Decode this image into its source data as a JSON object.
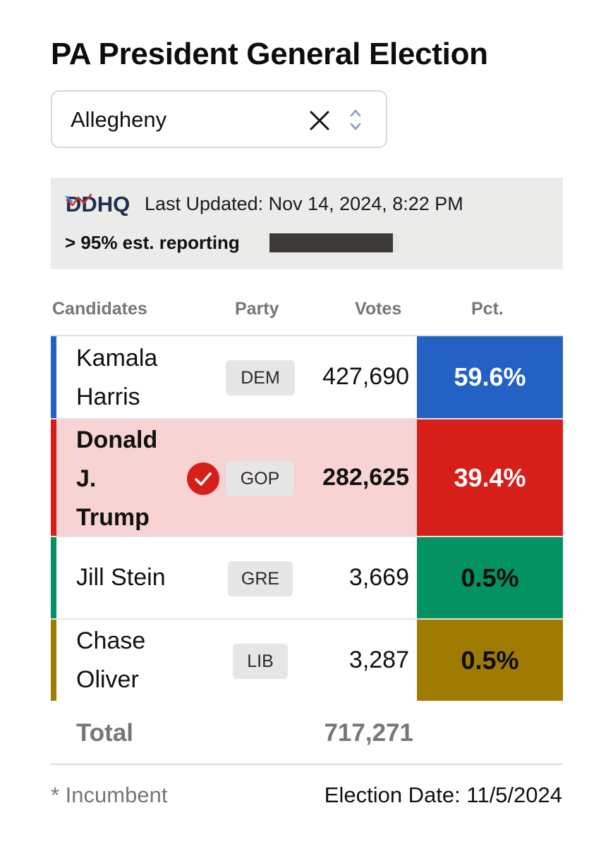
{
  "title": "PA President General Election",
  "county_select": {
    "value": "Allegheny"
  },
  "source": {
    "logo_text": "DDHQ",
    "last_updated": "Last Updated: Nov 14, 2024, 8:22 PM",
    "reporting": "> 95% est. reporting",
    "reporting_fraction": 0.95
  },
  "columns": {
    "candidates": "Candidates",
    "party": "Party",
    "votes": "Votes",
    "pct": "Pct."
  },
  "candidates": [
    {
      "name_lines": [
        "Kamala",
        "Harris"
      ],
      "party": "DEM",
      "votes": "427,690",
      "pct": "59.6%",
      "winner": false,
      "color": "#2361c4"
    },
    {
      "name_lines": [
        "Donald",
        "J.",
        "Trump"
      ],
      "party": "GOP",
      "votes": "282,625",
      "pct": "39.4%",
      "winner": true,
      "color": "#d71f1a",
      "row_bg": "#f7d3d3"
    },
    {
      "name_lines": [
        "Jill Stein"
      ],
      "party": "GRE",
      "votes": "3,669",
      "pct": "0.5%",
      "winner": false,
      "color": "#049262"
    },
    {
      "name_lines": [
        "Chase",
        "Oliver"
      ],
      "party": "LIB",
      "votes": "3,287",
      "pct": "0.5%",
      "winner": false,
      "color": "#a07b02"
    }
  ],
  "total": {
    "label": "Total",
    "votes": "717,271"
  },
  "footer": {
    "incumbent_note": "* Incumbent",
    "election_date": "Election Date: 11/5/2024"
  }
}
